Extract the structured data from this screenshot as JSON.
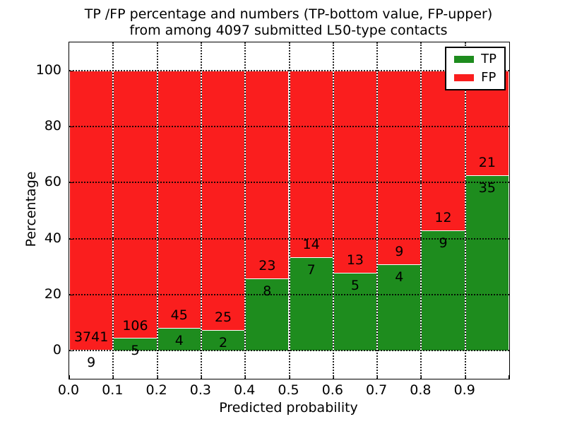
{
  "title": {
    "line1": "TP /FP percentage and numbers (TP-bottom value, FP-upper)",
    "line2": "from among 4097 submitted L50-type contacts"
  },
  "axes": {
    "xlabel": "Predicted probability",
    "ylabel": "Percentage",
    "xtick_labels": [
      "0.0",
      "0.1",
      "0.2",
      "0.3",
      "0.4",
      "0.5",
      "0.6",
      "0.7",
      "0.8",
      "0.9"
    ],
    "ytick_labels": [
      "0",
      "20",
      "40",
      "60",
      "80",
      "100"
    ]
  },
  "legend": {
    "items": [
      {
        "label": "TP",
        "color": "#1e8c1e"
      },
      {
        "label": "FP",
        "color": "#fa1e1e"
      }
    ]
  },
  "chart_data": {
    "type": "bar",
    "stacked": true,
    "title": "TP /FP percentage and numbers (TP-bottom value, FP-upper) from among 4097 submitted L50-type contacts",
    "total_contacts": 4097,
    "xlabel": "Predicted probability",
    "ylabel": "Percentage",
    "x_bins": [
      0.0,
      0.1,
      0.2,
      0.3,
      0.4,
      0.5,
      0.6,
      0.7,
      0.8,
      0.9
    ],
    "bin_width": 0.1,
    "xlim": [
      0.0,
      1.0
    ],
    "ylim": [
      -10,
      110
    ],
    "yticks": [
      0,
      20,
      40,
      60,
      80,
      100
    ],
    "grid": "dotted",
    "legend_position": "upper right",
    "bar_edge_color": "#ffffff",
    "series": [
      {
        "name": "TP",
        "color": "#1e8c1e",
        "counts": [
          9,
          5,
          4,
          2,
          8,
          7,
          5,
          4,
          9,
          35
        ],
        "percent": [
          0.24,
          4.5,
          8.16,
          7.41,
          25.81,
          33.33,
          27.78,
          30.77,
          42.86,
          62.5
        ]
      },
      {
        "name": "FP",
        "color": "#fa1e1e",
        "counts": [
          3741,
          106,
          45,
          25,
          23,
          14,
          13,
          9,
          12,
          21
        ],
        "percent": [
          99.76,
          95.5,
          91.84,
          92.59,
          74.19,
          66.67,
          72.22,
          69.23,
          57.14,
          37.5
        ]
      }
    ]
  }
}
